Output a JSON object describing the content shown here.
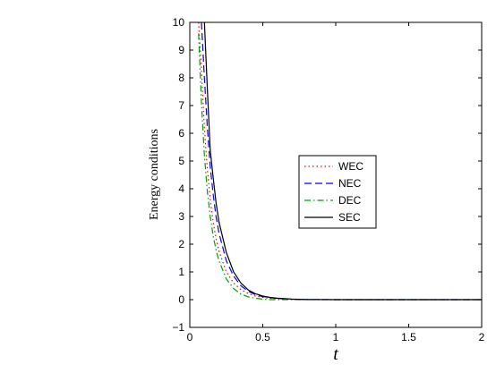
{
  "chart_data": {
    "type": "line",
    "xlabel": "t",
    "ylabel": "Energy conditions",
    "xlim": [
      0,
      2
    ],
    "ylim": [
      -1,
      10
    ],
    "xticks": [
      "0",
      "0.5",
      "1",
      "1.5",
      "2"
    ],
    "yticks": [
      "−1",
      "0",
      "1",
      "2",
      "3",
      "4",
      "5",
      "6",
      "7",
      "8",
      "9",
      "10"
    ],
    "grid": false,
    "legend_position": "right",
    "x": [
      0.06,
      0.08,
      0.1,
      0.12,
      0.14,
      0.16,
      0.18,
      0.2,
      0.25,
      0.3,
      0.35,
      0.4,
      0.45,
      0.5,
      0.55,
      0.6,
      0.7,
      0.8,
      1.0,
      1.5,
      2.0
    ],
    "series": [
      {
        "name": "WEC",
        "color": "#ff0000",
        "dash": "1.5,3",
        "values": [
          10.0,
          8.3,
          6.2,
          4.7,
          3.6,
          2.8,
          2.2,
          1.75,
          1.0,
          0.6,
          0.36,
          0.22,
          0.13,
          0.08,
          0.05,
          0.03,
          0.01,
          0.0,
          0.0,
          0.0,
          0.0
        ]
      },
      {
        "name": "NEC",
        "color": "#0000ff",
        "dash": "8,4",
        "values": [
          null,
          10.0,
          8.0,
          6.2,
          4.8,
          3.8,
          3.0,
          2.4,
          1.4,
          0.85,
          0.5,
          0.3,
          0.18,
          0.11,
          0.07,
          0.04,
          0.015,
          0.005,
          0.0,
          0.0,
          0.0
        ]
      },
      {
        "name": "DEC",
        "color": "#00a000",
        "dash": "7,3,1.5,3",
        "values": [
          9.6,
          7.1,
          5.2,
          3.9,
          3.0,
          2.3,
          1.8,
          1.4,
          0.75,
          0.4,
          0.2,
          0.1,
          0.05,
          0.02,
          0.0,
          0.0,
          0.0,
          0.0,
          0.0,
          0.0,
          0.0
        ]
      },
      {
        "name": "SEC",
        "color": "#000000",
        "dash": "",
        "values": [
          null,
          null,
          10.0,
          7.6,
          5.4,
          4.4,
          3.5,
          2.8,
          1.7,
          1.0,
          0.6,
          0.35,
          0.21,
          0.13,
          0.08,
          0.05,
          0.02,
          0.005,
          0.0,
          0.0,
          0.0
        ]
      }
    ]
  }
}
